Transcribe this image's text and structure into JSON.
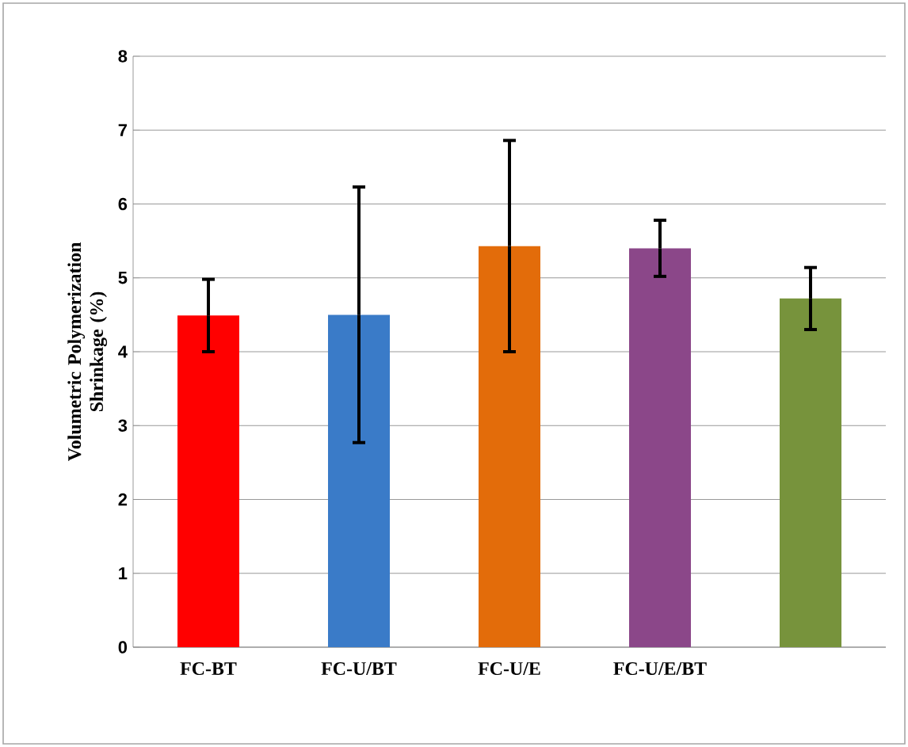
{
  "chart_data": {
    "type": "bar",
    "ylabel": "Volumetric Polymerization Shrinkage (%)",
    "categories": [
      "FC-BT",
      "FC-U/BT",
      "FC-U/E",
      "FC-U/E/BT",
      null
    ],
    "values": [
      4.49,
      4.5,
      5.43,
      5.4,
      4.72
    ],
    "errors": [
      0.49,
      1.73,
      1.43,
      0.38,
      0.42
    ],
    "colors": [
      "#ff0000",
      "#3a7bc8",
      "#e36c0a",
      "#8b4789",
      "#77933c"
    ],
    "ylim": [
      0,
      8
    ],
    "yticks": [
      0,
      1,
      2,
      3,
      4,
      5,
      6,
      7,
      8
    ],
    "grid": "y"
  }
}
